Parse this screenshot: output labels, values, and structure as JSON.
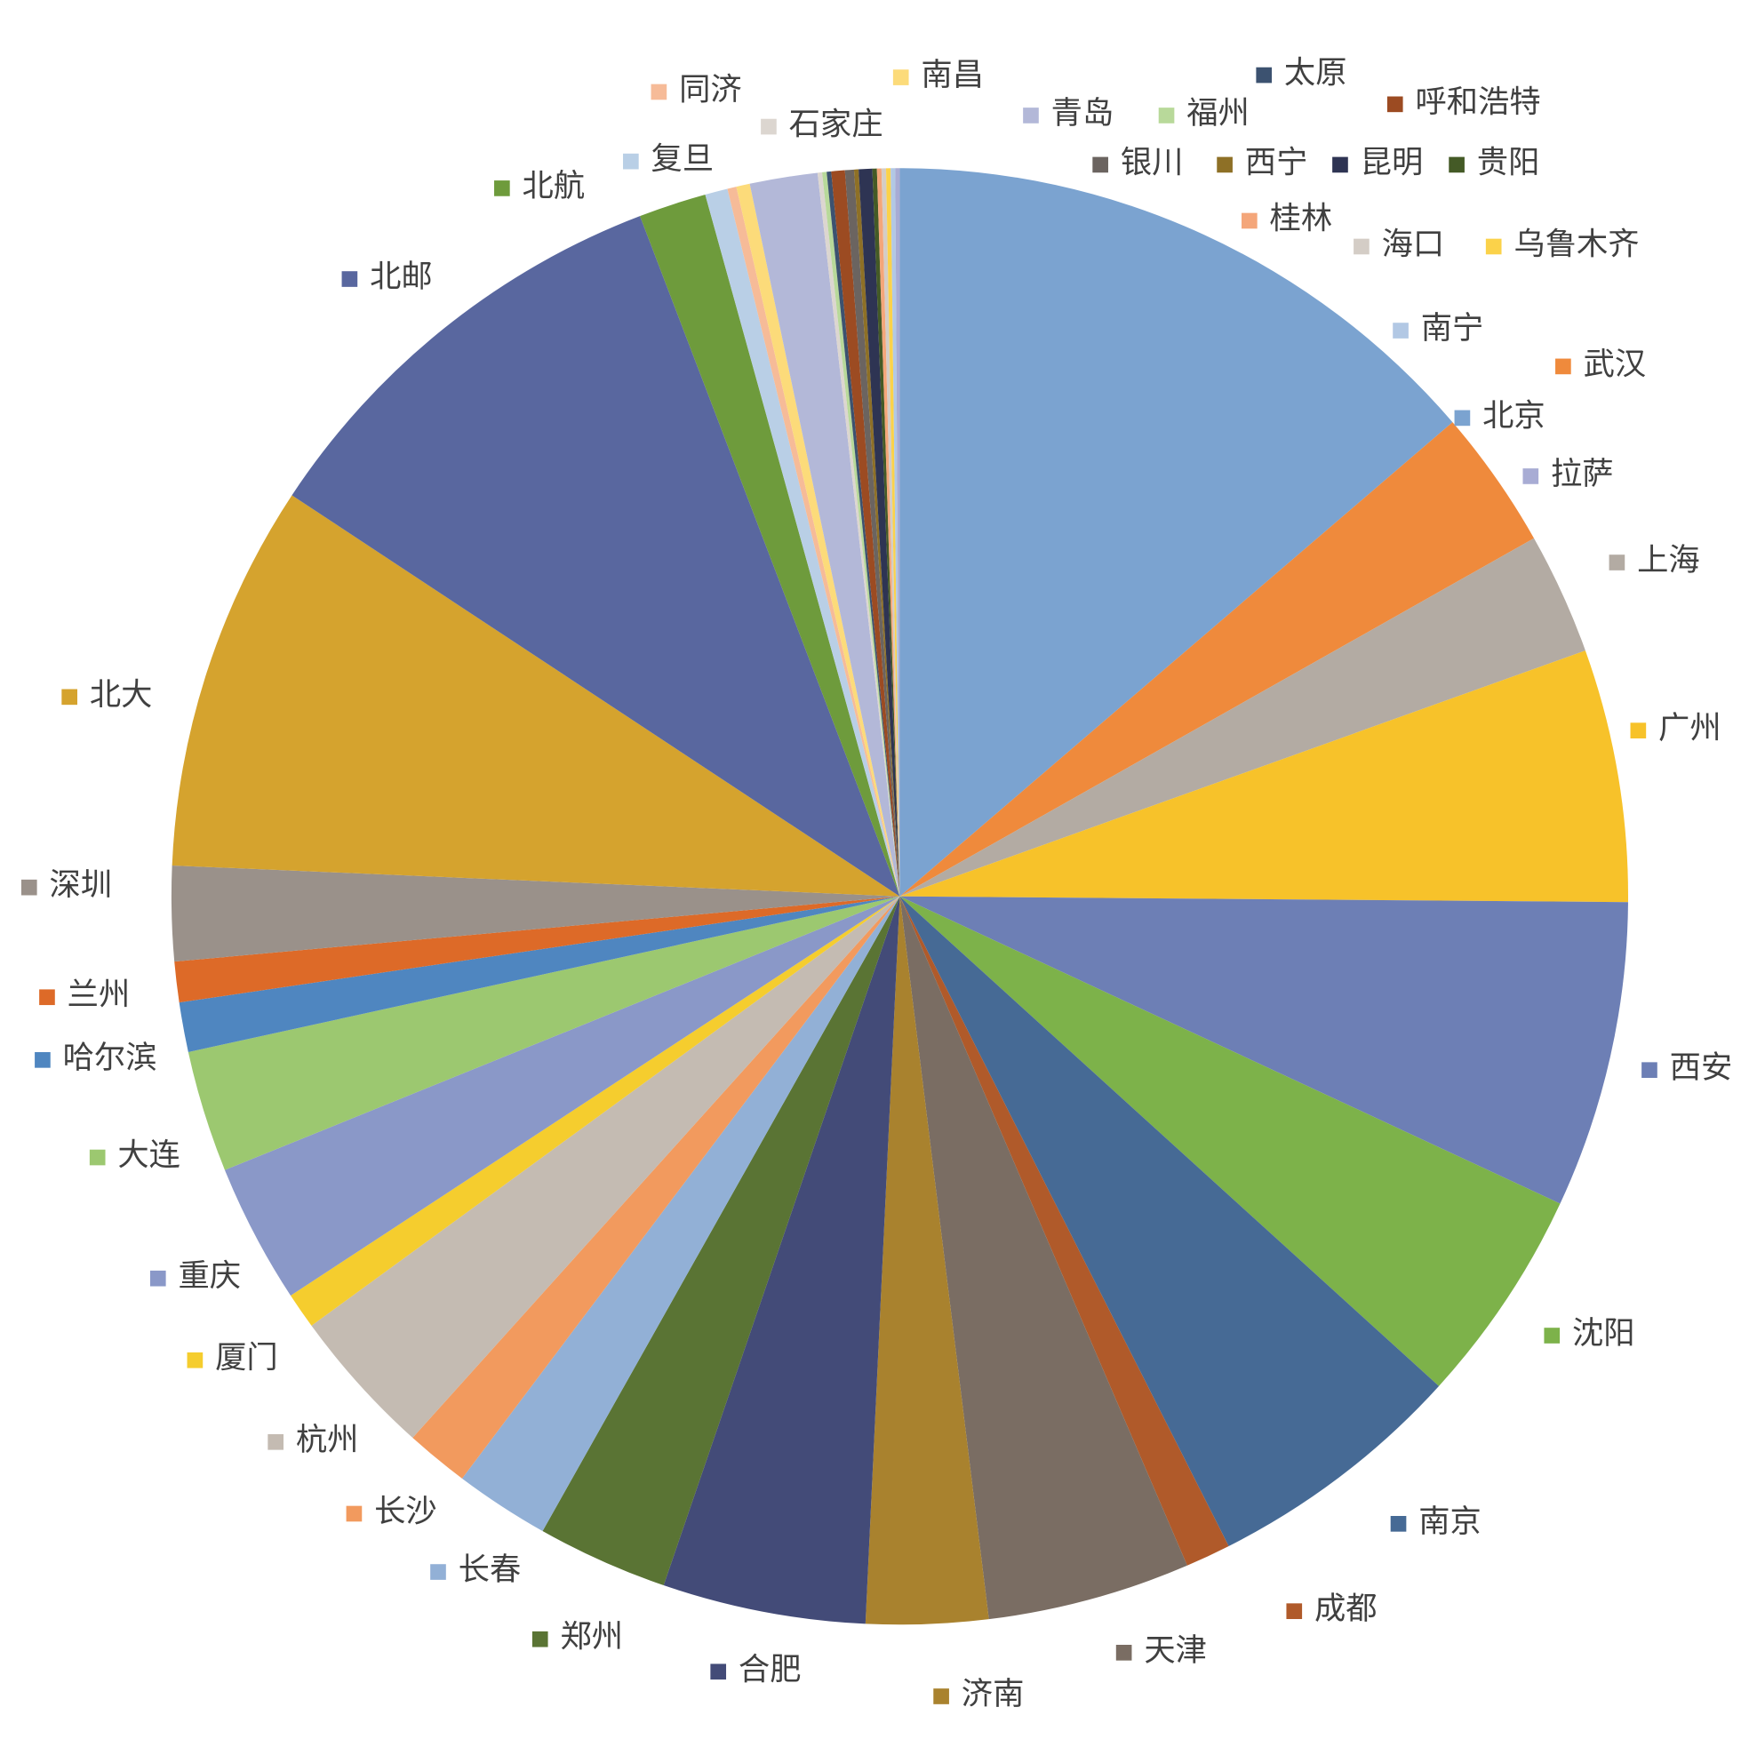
{
  "chart_data": {
    "type": "pie",
    "categories": [
      "北京",
      "武汉",
      "上海",
      "广州",
      "西安",
      "沈阳",
      "南京",
      "成都",
      "天津",
      "济南",
      "合肥",
      "郑州",
      "长春",
      "长沙",
      "杭州",
      "厦门",
      "重庆",
      "大连",
      "哈尔滨",
      "兰州",
      "深圳",
      "北大",
      "北邮",
      "北航",
      "复旦",
      "同济",
      "南昌",
      "青岛",
      "石家庄",
      "福州",
      "太原",
      "呼和浩特",
      "银川",
      "西宁",
      "昆明",
      "贵阳",
      "桂林",
      "海口",
      "乌鲁木齐",
      "南宁",
      "拉萨"
    ],
    "values": [
      13.7,
      3.1,
      2.7,
      5.6,
      6.8,
      4.8,
      5.8,
      1.0,
      4.5,
      2.7,
      4.5,
      2.9,
      2.1,
      1.4,
      3.3,
      0.8,
      3.1,
      2.7,
      1.1,
      0.9,
      2.1,
      8.6,
      9.9,
      1.5,
      0.5,
      0.2,
      0.3,
      1.5,
      0.1,
      0.1,
      0.1,
      0.3,
      0.2,
      0.1,
      0.3,
      0.1,
      0.1,
      0.1,
      0.1,
      0.1,
      0.1
    ],
    "colors": [
      "#7ba3d0",
      "#ef8a3c",
      "#b3aba3",
      "#f7c22a",
      "#6d7fb5",
      "#7db24a",
      "#466a95",
      "#b05a2a",
      "#7a6d63",
      "#a9822e",
      "#434b78",
      "#5a7434",
      "#92b0d6",
      "#f29a5e",
      "#c4bbb2",
      "#f5cd2e",
      "#8a98c8",
      "#9cc870",
      "#4f86c0",
      "#dd6a28",
      "#9a918a",
      "#d5a32e",
      "#59679f",
      "#6e9b3c",
      "#b9cfe6",
      "#f6bb98",
      "#fcdb7a",
      "#b3b8d8",
      "#dcd6d0",
      "#b8d99a",
      "#3c5270",
      "#9c4b22",
      "#6b6460",
      "#8e7026",
      "#2e3453",
      "#445a26",
      "#f4a67a",
      "#d4cdc6",
      "#fbd24a",
      "#b2c8e4",
      "#a8acd4"
    ]
  }
}
